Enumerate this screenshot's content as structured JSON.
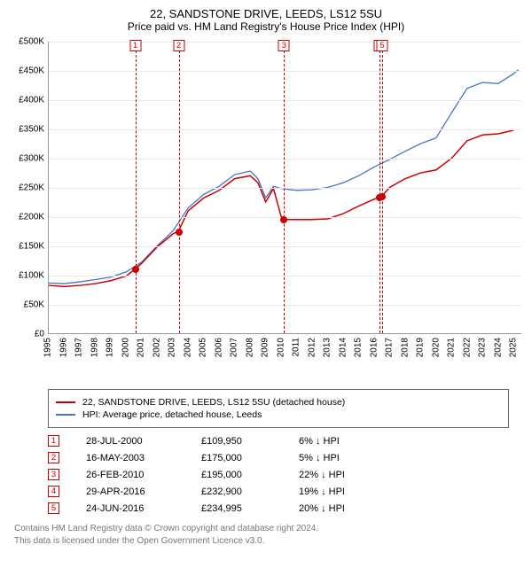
{
  "title": "22, SANDSTONE DRIVE, LEEDS, LS12 5SU",
  "subtitle": "Price paid vs. HM Land Registry's House Price Index (HPI)",
  "chart": {
    "type": "line",
    "xlim": [
      1995,
      2025.5
    ],
    "ylim": [
      0,
      500000
    ],
    "ytick_step": 50000,
    "y_prefix": "£",
    "y_suffix": "K",
    "background_color": "#ffffff",
    "grid_color": "#e8e8e8",
    "axis_color": "#999999",
    "x_years": [
      1995,
      1996,
      1997,
      1998,
      1999,
      2000,
      2001,
      2002,
      2003,
      2004,
      2005,
      2006,
      2007,
      2008,
      2009,
      2010,
      2011,
      2012,
      2013,
      2014,
      2015,
      2016,
      2017,
      2018,
      2019,
      2020,
      2021,
      2022,
      2023,
      2024,
      2025
    ],
    "series_red": {
      "label": "22, SANDSTONE DRIVE, LEEDS, LS12 5SU (detached house)",
      "color": "#cc0000",
      "line_width": 1.5,
      "points": [
        [
          1995,
          82000
        ],
        [
          1996,
          80000
        ],
        [
          1997,
          82000
        ],
        [
          1998,
          85000
        ],
        [
          1999,
          90000
        ],
        [
          2000,
          98000
        ],
        [
          2000.57,
          109950
        ],
        [
          2001,
          120000
        ],
        [
          2002,
          148000
        ],
        [
          2003,
          170000
        ],
        [
          2003.37,
          175000
        ],
        [
          2004,
          210000
        ],
        [
          2005,
          232000
        ],
        [
          2006,
          245000
        ],
        [
          2007,
          265000
        ],
        [
          2008,
          270000
        ],
        [
          2008.5,
          258000
        ],
        [
          2009,
          225000
        ],
        [
          2009.5,
          248000
        ],
        [
          2010,
          200000
        ],
        [
          2010.15,
          195000
        ],
        [
          2011,
          195000
        ],
        [
          2012,
          195000
        ],
        [
          2013,
          196000
        ],
        [
          2014,
          205000
        ],
        [
          2015,
          218000
        ],
        [
          2016,
          230000
        ],
        [
          2016.33,
          232900
        ],
        [
          2016.48,
          234995
        ],
        [
          2017,
          250000
        ],
        [
          2018,
          265000
        ],
        [
          2019,
          275000
        ],
        [
          2020,
          280000
        ],
        [
          2021,
          300000
        ],
        [
          2022,
          330000
        ],
        [
          2023,
          340000
        ],
        [
          2024,
          342000
        ],
        [
          2025,
          348000
        ]
      ]
    },
    "series_blue": {
      "label": "HPI: Average price, detached house, Leeds",
      "color": "#4a72c8",
      "line_width": 1.3,
      "points": [
        [
          1995,
          86000
        ],
        [
          1996,
          85000
        ],
        [
          1997,
          88000
        ],
        [
          1998,
          92000
        ],
        [
          1999,
          96000
        ],
        [
          2000,
          105000
        ],
        [
          2001,
          122000
        ],
        [
          2002,
          150000
        ],
        [
          2003,
          175000
        ],
        [
          2004,
          215000
        ],
        [
          2005,
          238000
        ],
        [
          2006,
          252000
        ],
        [
          2007,
          272000
        ],
        [
          2008,
          278000
        ],
        [
          2008.5,
          265000
        ],
        [
          2009,
          232000
        ],
        [
          2009.5,
          252000
        ],
        [
          2010,
          248000
        ],
        [
          2011,
          245000
        ],
        [
          2012,
          246000
        ],
        [
          2013,
          250000
        ],
        [
          2014,
          258000
        ],
        [
          2015,
          270000
        ],
        [
          2016,
          285000
        ],
        [
          2017,
          298000
        ],
        [
          2018,
          312000
        ],
        [
          2019,
          325000
        ],
        [
          2020,
          335000
        ],
        [
          2021,
          378000
        ],
        [
          2022,
          420000
        ],
        [
          2023,
          430000
        ],
        [
          2024,
          428000
        ],
        [
          2025,
          445000
        ],
        [
          2025.3,
          452000
        ]
      ]
    },
    "sale_markers": [
      {
        "num": "1",
        "year": 2000.57,
        "value": 109950
      },
      {
        "num": "2",
        "year": 2003.37,
        "value": 175000
      },
      {
        "num": "3",
        "year": 2010.15,
        "value": 195000
      },
      {
        "num": "4",
        "year": 2016.33,
        "value": 232900
      },
      {
        "num": "5",
        "year": 2016.48,
        "value": 234995
      }
    ],
    "marker_line_color": "#cc0000",
    "marker_line_dash": "3,3"
  },
  "legend": {
    "border_color": "#666666",
    "items": [
      {
        "color": "#cc0000",
        "label_key": "chart.series_red.label"
      },
      {
        "color": "#4a72c8",
        "label_key": "chart.series_blue.label"
      }
    ]
  },
  "sales_table": {
    "rows": [
      {
        "num": "1",
        "date": "28-JUL-2000",
        "price": "£109,950",
        "diff": "6% ↓ HPI"
      },
      {
        "num": "2",
        "date": "16-MAY-2003",
        "price": "£175,000",
        "diff": "5% ↓ HPI"
      },
      {
        "num": "3",
        "date": "26-FEB-2010",
        "price": "£195,000",
        "diff": "22% ↓ HPI"
      },
      {
        "num": "4",
        "date": "29-APR-2016",
        "price": "£232,900",
        "diff": "19% ↓ HPI"
      },
      {
        "num": "5",
        "date": "24-JUN-2016",
        "price": "£234,995",
        "diff": "20% ↓ HPI"
      }
    ]
  },
  "footnote": {
    "line1": "Contains HM Land Registry data © Crown copyright and database right 2024.",
    "line2": "This data is licensed under the Open Government Licence v3.0."
  }
}
